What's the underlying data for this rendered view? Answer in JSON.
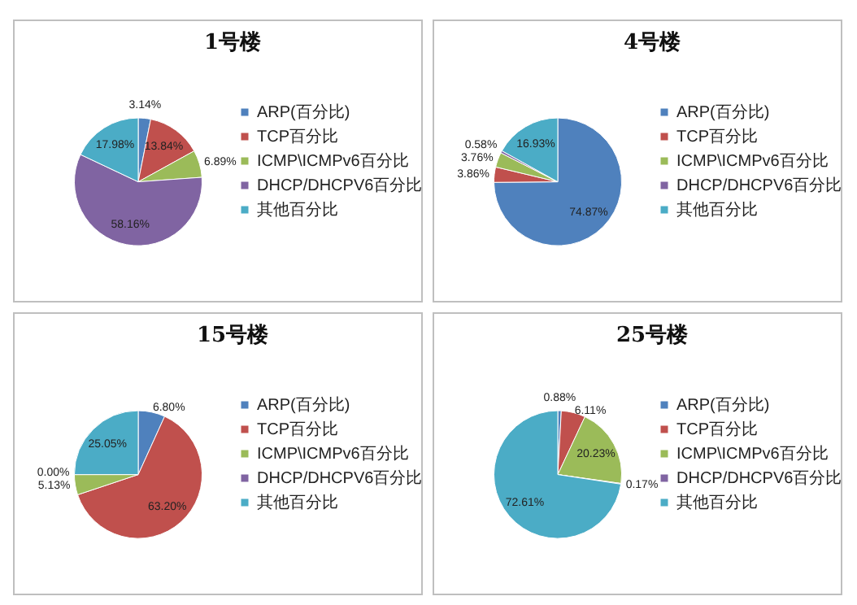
{
  "chart_data": [
    {
      "type": "pie",
      "title": "1号楼",
      "categories": [
        "ARP(百分比)",
        "TCP百分比",
        "ICMP\\ICMPv6百分比",
        "DHCP/DHCPV6百分比",
        "其他百分比"
      ],
      "values": [
        3.14,
        13.84,
        6.89,
        58.16,
        17.98
      ],
      "value_labels": [
        "3.14%",
        "13.84%",
        "6.89%",
        "58.16%",
        "17.98%"
      ],
      "colors": [
        "#4f81bd",
        "#c0504d",
        "#9bbb59",
        "#8064a2",
        "#4bacc6"
      ],
      "legend": "right"
    },
    {
      "type": "pie",
      "title": "4号楼",
      "categories": [
        "ARP(百分比)",
        "TCP百分比",
        "ICMP\\ICMPv6百分比",
        "DHCP/DHCPV6百分比",
        "其他百分比"
      ],
      "values": [
        74.87,
        3.86,
        3.76,
        0.58,
        16.93
      ],
      "value_labels": [
        "74.87%",
        "3.86%",
        "3.76%",
        "0.58%",
        "16.93%"
      ],
      "colors": [
        "#4f81bd",
        "#c0504d",
        "#9bbb59",
        "#8064a2",
        "#4bacc6"
      ],
      "legend": "right"
    },
    {
      "type": "pie",
      "title": "15号楼",
      "categories": [
        "ARP(百分比)",
        "TCP百分比",
        "ICMP\\ICMPv6百分比",
        "DHCP/DHCPV6百分比",
        "其他百分比"
      ],
      "values": [
        6.8,
        63.2,
        5.13,
        0.0,
        25.05
      ],
      "value_labels": [
        "6.80%",
        "63.20%",
        "5.13%",
        "0.00%",
        "25.05%"
      ],
      "colors": [
        "#4f81bd",
        "#c0504d",
        "#9bbb59",
        "#8064a2",
        "#4bacc6"
      ],
      "legend": "right"
    },
    {
      "type": "pie",
      "title": "25号楼",
      "categories": [
        "ARP(百分比)",
        "TCP百分比",
        "ICMP\\ICMPv6百分比",
        "DHCP/DHCPV6百分比",
        "其他百分比"
      ],
      "values": [
        0.88,
        6.11,
        20.23,
        0.17,
        72.61
      ],
      "value_labels": [
        "0.88%",
        "6.11%",
        "20.23%",
        "0.17%",
        "72.61%"
      ],
      "colors": [
        "#4f81bd",
        "#c0504d",
        "#9bbb59",
        "#8064a2",
        "#4bacc6"
      ],
      "legend": "right"
    }
  ]
}
